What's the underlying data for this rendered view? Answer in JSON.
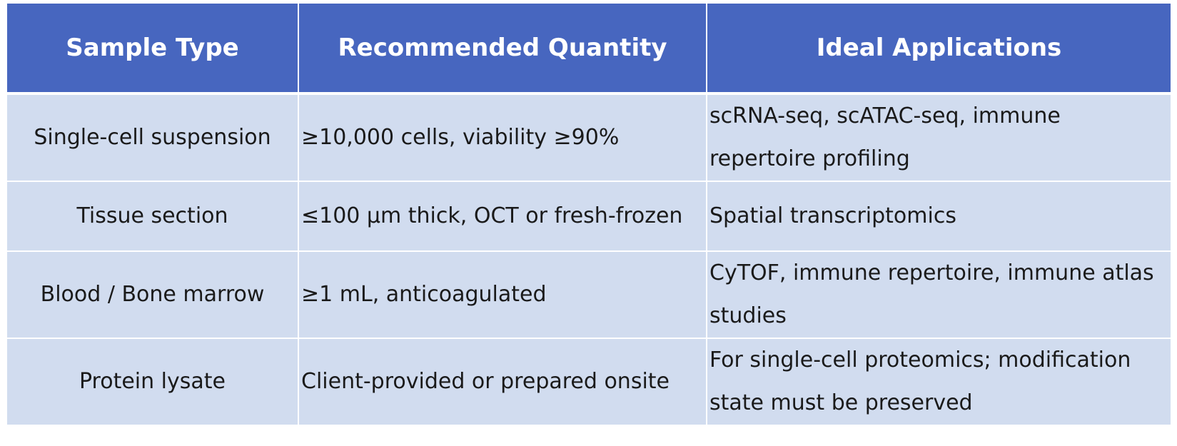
{
  "table": {
    "headers": [
      "Sample Type",
      "Recommended Quantity",
      "Ideal Applications"
    ],
    "rows": [
      [
        "Single-cell suspension",
        "≥10,000 cells, viability ≥90%",
        "scRNA-seq, scATAC-seq, immune repertoire profiling"
      ],
      [
        "Tissue section",
        "≤100 μm thick, OCT or fresh-frozen",
        "Spatial transcriptomics"
      ],
      [
        "Blood / Bone marrow",
        "≥1 mL, anticoagulated",
        "CyTOF, immune repertoire, immune atlas studies"
      ],
      [
        "Protein lysate",
        "Client-provided or prepared onsite",
        "For single-cell proteomics; modification state must be preserved"
      ]
    ]
  },
  "colors": {
    "header_bg": "#4766bf",
    "body_bg": "#d1dcef",
    "header_text": "#ffffff",
    "grid_line": "#ffffff"
  }
}
